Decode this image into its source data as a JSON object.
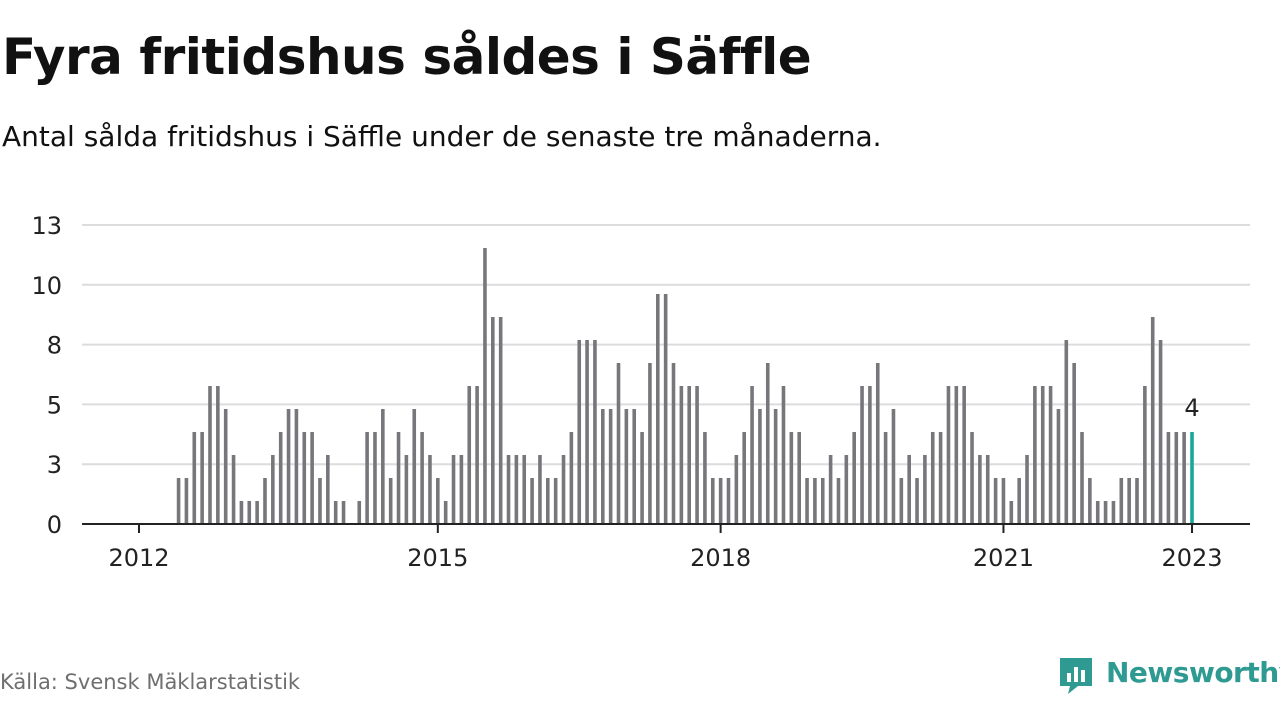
{
  "title": "Fyra fritidshus såldes i Säffle",
  "subtitle": "Antal sålda fritidshus i Säffle under de senaste tre månaderna.",
  "source": "Källa: Svensk Mäklarstatistik",
  "brand": {
    "name": "Newsworthy",
    "icon": "newsworthy-logo-icon",
    "color": "#2e9a92"
  },
  "colors": {
    "bar": "#77767b",
    "highlight": "#1aa79b",
    "grid": "#dcdcdc",
    "axis": "#222222",
    "text": "#222222"
  },
  "chart_data": {
    "type": "bar",
    "x_start": "2012-01",
    "x_end": "2023-01",
    "xticks": [
      "2012",
      "2015",
      "2018",
      "2021",
      "2023"
    ],
    "yticks": [
      "0",
      "3",
      "5",
      "8",
      "10",
      "13"
    ],
    "ylim": [
      0,
      13
    ],
    "highlight_label": "4",
    "grid": true,
    "values": [
      0,
      0,
      0,
      2,
      2,
      4,
      4,
      6,
      6,
      5,
      3,
      1,
      1,
      1,
      2,
      3,
      4,
      5,
      5,
      4,
      4,
      2,
      3,
      1,
      1,
      0,
      1,
      4,
      4,
      5,
      2,
      4,
      3,
      5,
      4,
      3,
      2,
      1,
      3,
      3,
      6,
      6,
      12,
      9,
      9,
      3,
      3,
      3,
      2,
      3,
      2,
      2,
      3,
      4,
      8,
      8,
      8,
      5,
      5,
      7,
      5,
      5,
      4,
      7,
      10,
      10,
      7,
      6,
      6,
      6,
      4,
      2,
      2,
      2,
      3,
      4,
      6,
      5,
      7,
      5,
      6,
      4,
      4,
      2,
      2,
      2,
      3,
      2,
      3,
      4,
      6,
      6,
      7,
      4,
      5,
      2,
      3,
      2,
      3,
      4,
      4,
      6,
      6,
      6,
      4,
      3,
      3,
      2,
      2,
      1,
      2,
      3,
      6,
      6,
      6,
      5,
      8,
      7,
      4,
      2,
      1,
      1,
      1,
      2,
      2,
      2,
      6,
      9,
      8,
      4,
      4,
      4,
      4
    ]
  }
}
